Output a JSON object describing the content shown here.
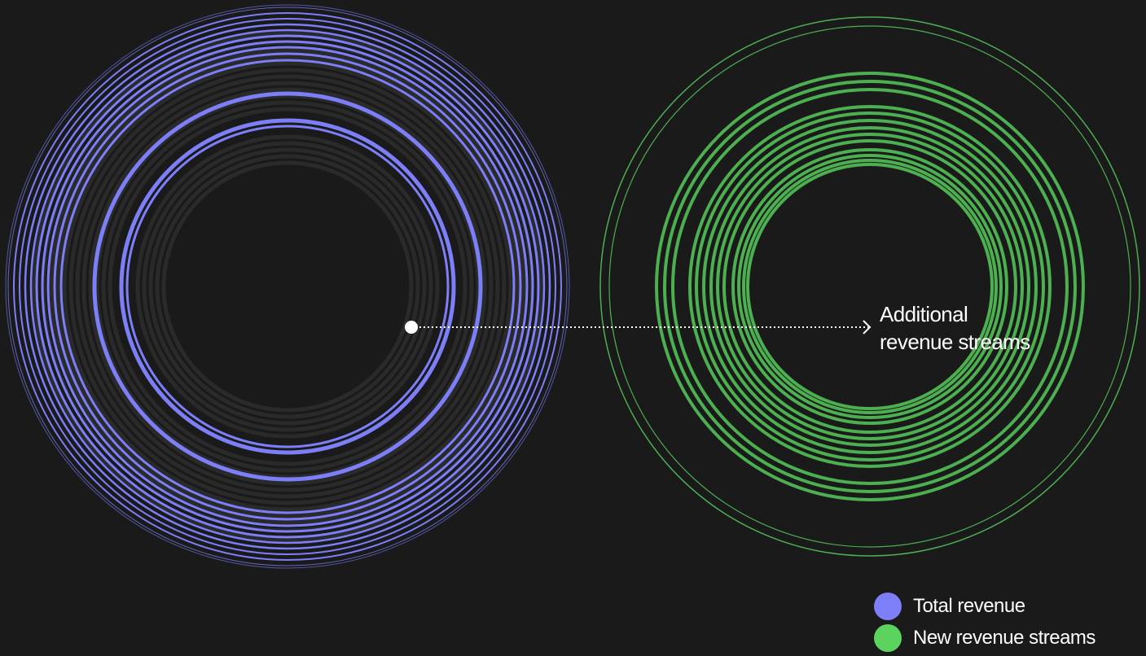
{
  "diagram": {
    "annotation_lines": [
      "Additional",
      "revenue streams"
    ],
    "colors": {
      "background": "#1a1a1a",
      "total_revenue": "#7c7ff7",
      "new_revenue_streams": "#4caf50",
      "dim_ring": "#2a2a2a",
      "text": "#ffffff"
    }
  },
  "legend": {
    "items": [
      {
        "label": "Total revenue",
        "color": "#7c7ff7"
      },
      {
        "label": "New revenue streams",
        "color": "#5cd35f"
      }
    ]
  }
}
